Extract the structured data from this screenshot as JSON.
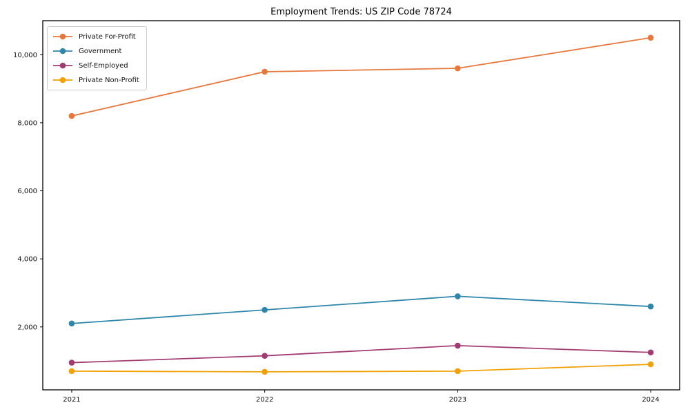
{
  "chart_data": {
    "type": "line",
    "title": "Employment Trends: US ZIP Code 78724",
    "categories": [
      "2021",
      "2022",
      "2023",
      "2024"
    ],
    "series": [
      {
        "name": "Private For-Profit",
        "color": "#e8773b",
        "values": [
          8200,
          9500,
          9600,
          10500
        ]
      },
      {
        "name": "Government",
        "color": "#2e86ab",
        "values": [
          2100,
          2500,
          2900,
          2600
        ]
      },
      {
        "name": "Self-Employed",
        "color": "#a23b72",
        "values": [
          950,
          1150,
          1450,
          1250
        ]
      },
      {
        "name": "Private Non-Profit",
        "color": "#f2a104",
        "values": [
          700,
          680,
          700,
          900
        ]
      }
    ],
    "yticks": [
      2000,
      4000,
      6000,
      8000,
      10000
    ],
    "ytick_labels": [
      "2,000",
      "4,000",
      "6,000",
      "8,000",
      "10,000"
    ],
    "ylim": [
      150,
      11000
    ],
    "xlabel": "",
    "ylabel": "",
    "grid": false,
    "legend_position": "upper-left",
    "marker": "circle",
    "frame_color": "#000000",
    "background": "#ffffff"
  }
}
